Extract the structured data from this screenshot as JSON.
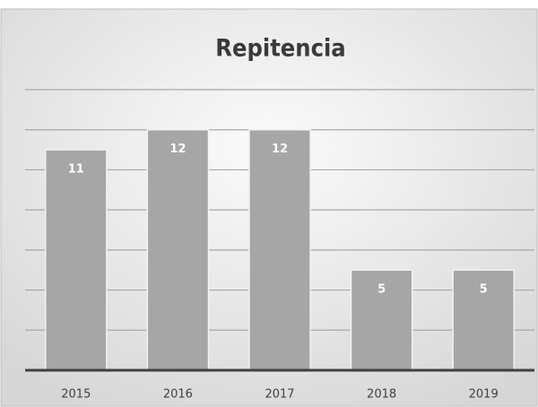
{
  "chart_data": {
    "type": "bar",
    "title": "Repitencia",
    "categories": [
      "2015",
      "2016",
      "2017",
      "2018",
      "2019"
    ],
    "values": [
      11,
      12,
      12,
      5,
      5
    ],
    "color": "#a6a6a6",
    "ylim": [
      0,
      14
    ],
    "yticks": [
      0,
      2,
      4,
      6,
      8,
      10,
      12,
      14
    ],
    "grid": true
  }
}
